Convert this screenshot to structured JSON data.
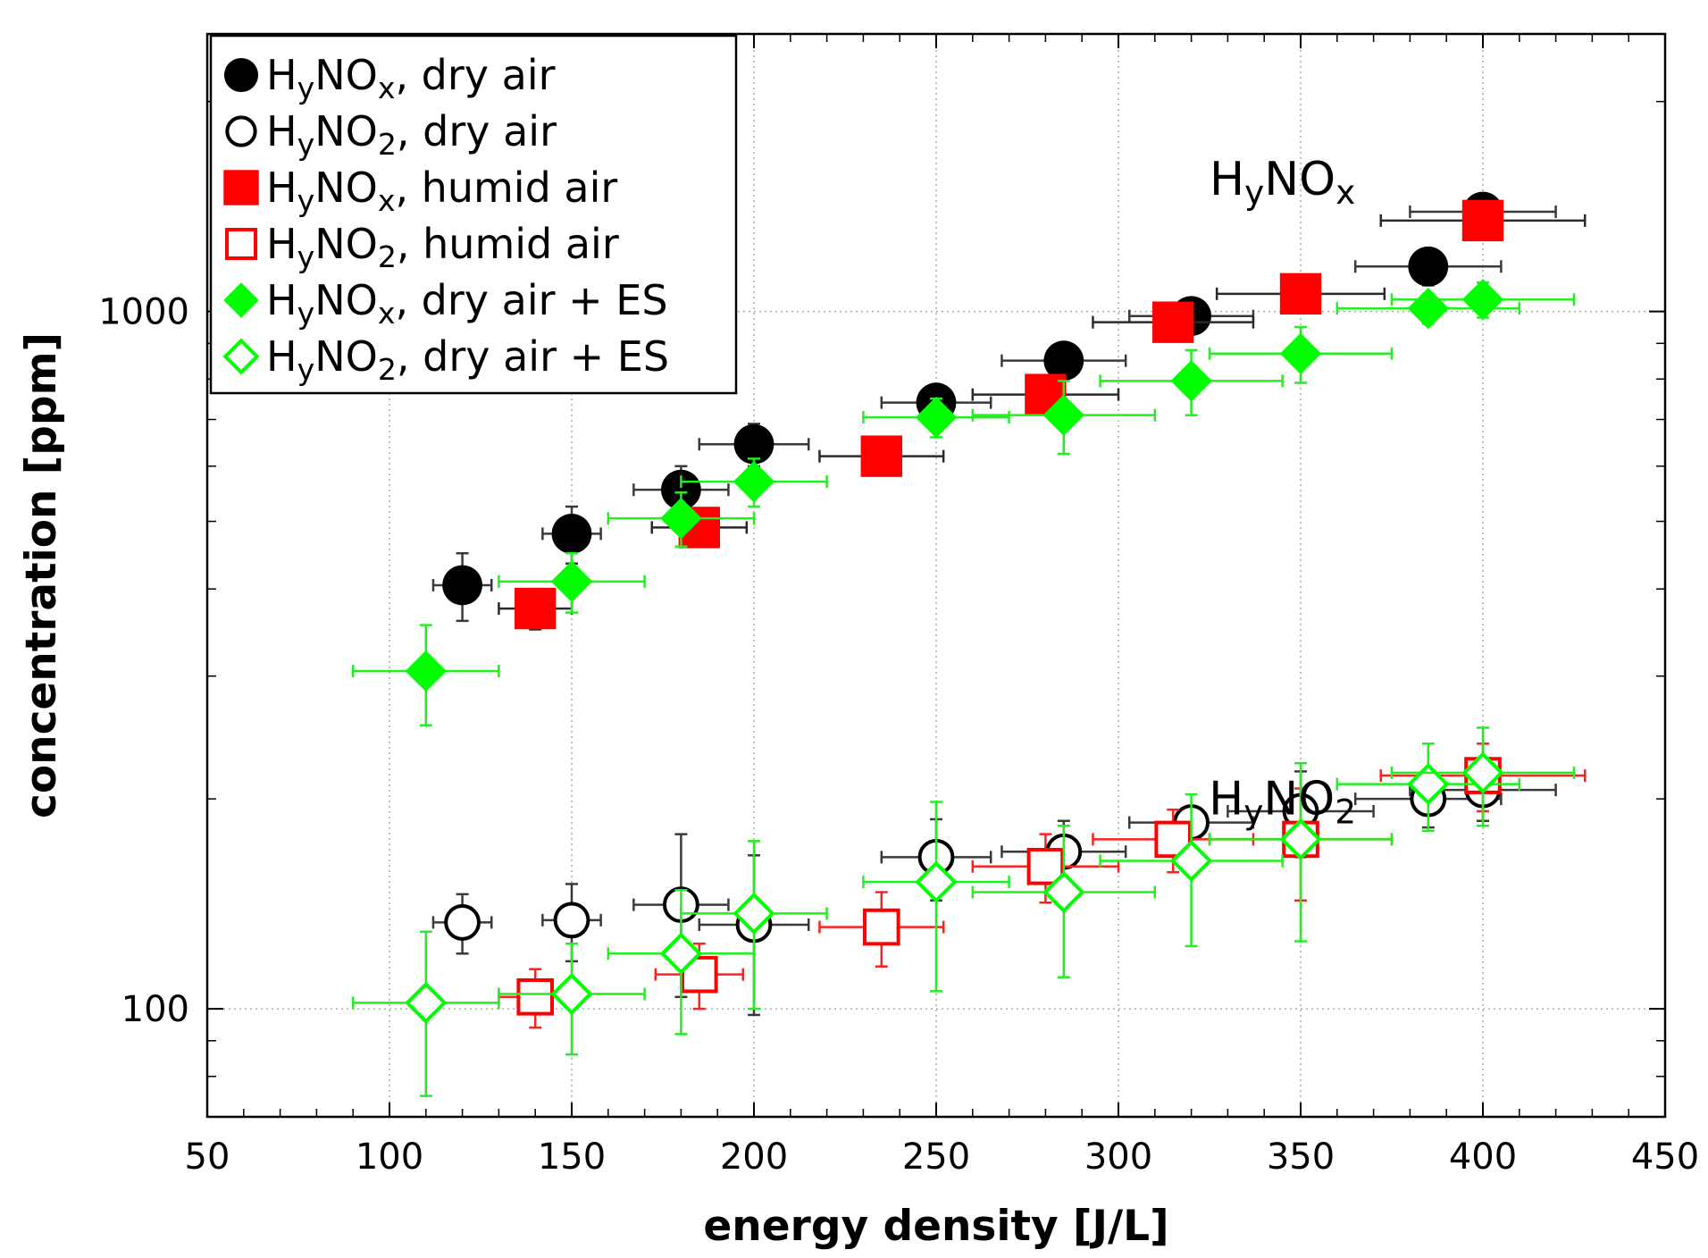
{
  "chart_data": {
    "type": "scatter",
    "xlabel": "energy density [J/L]",
    "ylabel": "concentration [ppm]",
    "xlim": [
      50,
      450
    ],
    "ylim": [
      70,
      2500
    ],
    "yscale": "log",
    "xticks": [
      50,
      100,
      150,
      200,
      250,
      300,
      350,
      400,
      450
    ],
    "xtick_labels": [
      "50",
      "100",
      "150",
      "200",
      "250",
      "300",
      "350",
      "400",
      "450"
    ],
    "yticks": [
      100,
      1000
    ],
    "ytick_labels": [
      "100",
      "1000"
    ],
    "grid": true,
    "legend_position": "top-left",
    "annotations": [
      {
        "base": "H",
        "sub": "y",
        "rest": "NO",
        "sub2": "x",
        "at_x": 345,
        "at_y": 1470
      },
      {
        "base": "H",
        "sub": "y",
        "rest": "NO",
        "sub2": "2",
        "at_x": 345,
        "at_y": 190
      }
    ],
    "series": [
      {
        "name": "H_yNO_x, dry air",
        "legend": {
          "base": "H",
          "sub": "y",
          "rest": "NO",
          "sub2": "x",
          "tail": ", dry air"
        },
        "marker": "circle",
        "filled": true,
        "color": "#000000",
        "err_color": "#3a3a3a",
        "points": [
          {
            "x": 120,
            "y": 405,
            "xerr": 8,
            "yerr": [
              360,
              450
            ]
          },
          {
            "x": 150,
            "y": 480,
            "xerr": 8,
            "yerr": [
              435,
              525
            ]
          },
          {
            "x": 180,
            "y": 555,
            "xerr": 13,
            "yerr": [
              510,
              600
            ]
          },
          {
            "x": 200,
            "y": 645,
            "xerr": 15,
            "yerr": [
              600,
              690
            ]
          },
          {
            "x": 250,
            "y": 740,
            "xerr": 15,
            "yerr": [
              695,
              785
            ]
          },
          {
            "x": 285,
            "y": 850,
            "xerr": 17,
            "yerr": [
              805,
              895
            ]
          },
          {
            "x": 320,
            "y": 985,
            "xerr": 17,
            "yerr": [
              945,
              1025
            ]
          },
          {
            "x": 385,
            "y": 1160,
            "xerr": 20,
            "yerr": [
              1090,
              1230
            ]
          },
          {
            "x": 400,
            "y": 1390,
            "xerr": 20,
            "yerr": [
              1300,
              1470
            ]
          }
        ]
      },
      {
        "name": "H_yNO_2, dry air",
        "legend": {
          "base": "H",
          "sub": "y",
          "rest": "NO",
          "sub2": "2",
          "tail": ", dry air"
        },
        "marker": "circle",
        "filled": false,
        "color": "#000000",
        "err_color": "#3a3a3a",
        "points": [
          {
            "x": 120,
            "y": 133,
            "xerr": 8,
            "yerr": [
              120,
              146
            ]
          },
          {
            "x": 150,
            "y": 134,
            "xerr": 8,
            "yerr": [
              117,
              151
            ]
          },
          {
            "x": 180,
            "y": 141,
            "xerr": 13,
            "yerr": [
              104,
              178
            ]
          },
          {
            "x": 200,
            "y": 132,
            "xerr": 15,
            "yerr": [
              98,
              166
            ]
          },
          {
            "x": 250,
            "y": 165,
            "xerr": 15,
            "yerr": [
              143,
              187
            ]
          },
          {
            "x": 285,
            "y": 168,
            "xerr": 17,
            "yerr": [
              150,
              186
            ]
          },
          {
            "x": 320,
            "y": 185,
            "xerr": 17,
            "yerr": [
              176,
              194
            ]
          },
          {
            "x": 350,
            "y": 192,
            "xerr": 20,
            "yerr": [
              165,
              219
            ]
          },
          {
            "x": 385,
            "y": 200,
            "xerr": 20,
            "yerr": [
              182,
              218
            ]
          },
          {
            "x": 400,
            "y": 206,
            "xerr": 20,
            "yerr": [
              186,
              226
            ]
          }
        ]
      },
      {
        "name": "H_yNO_x, humid air",
        "legend": {
          "base": "H",
          "sub": "y",
          "rest": "NO",
          "sub2": "x",
          "tail": ", humid air"
        },
        "marker": "square",
        "filled": true,
        "color": "#ff0000",
        "err_color": "#2a2a2a",
        "points": [
          {
            "x": 140,
            "y": 375,
            "xerr": 10,
            "yerr": [
              350,
              400
            ]
          },
          {
            "x": 185,
            "y": 490,
            "xerr": 13,
            "yerr": [
              465,
              515
            ]
          },
          {
            "x": 235,
            "y": 620,
            "xerr": 17,
            "yerr": [
              590,
              650
            ]
          },
          {
            "x": 280,
            "y": 760,
            "xerr": 20,
            "yerr": [
              725,
              795
            ]
          },
          {
            "x": 315,
            "y": 965,
            "xerr": 22,
            "yerr": [
              920,
              1010
            ]
          },
          {
            "x": 350,
            "y": 1060,
            "xerr": 23,
            "yerr": [
              1010,
              1110
            ]
          },
          {
            "x": 400,
            "y": 1350,
            "xerr": 28,
            "yerr": [
              1280,
              1420
            ]
          }
        ]
      },
      {
        "name": "H_yNO_2, humid air",
        "legend": {
          "base": "H",
          "sub": "y",
          "rest": "NO",
          "sub2": "2",
          "tail": ", humid air"
        },
        "marker": "square",
        "filled": false,
        "color": "#ff0000",
        "err_color": "#ff2020",
        "points": [
          {
            "x": 140,
            "y": 104,
            "xerr": 10,
            "yerr": [
              94,
              114
            ]
          },
          {
            "x": 185,
            "y": 112,
            "xerr": 12,
            "yerr": [
              100,
              124
            ]
          },
          {
            "x": 235,
            "y": 131,
            "xerr": 17,
            "yerr": [
              115,
              147
            ]
          },
          {
            "x": 280,
            "y": 160,
            "xerr": 20,
            "yerr": [
              142,
              178
            ]
          },
          {
            "x": 315,
            "y": 175,
            "xerr": 22,
            "yerr": [
              157,
              193
            ]
          },
          {
            "x": 350,
            "y": 175,
            "xerr": 25,
            "yerr": [
              143,
              207
            ]
          },
          {
            "x": 400,
            "y": 216,
            "xerr": 28,
            "yerr": [
              192,
              240
            ]
          }
        ]
      },
      {
        "name": "H_yNO_x, dry air + ES",
        "legend": {
          "base": "H",
          "sub": "y",
          "rest": "NO",
          "sub2": "x",
          "tail": ", dry air + ES"
        },
        "marker": "diamond",
        "filled": true,
        "color": "#00ff00",
        "err_color": "#22ee22",
        "points": [
          {
            "x": 110,
            "y": 305,
            "xerr": 20,
            "yerr": [
              255,
              355
            ]
          },
          {
            "x": 150,
            "y": 410,
            "xerr": 20,
            "yerr": [
              370,
              450
            ]
          },
          {
            "x": 180,
            "y": 505,
            "xerr": 20,
            "yerr": [
              460,
              550
            ]
          },
          {
            "x": 200,
            "y": 570,
            "xerr": 20,
            "yerr": [
              525,
              615
            ]
          },
          {
            "x": 250,
            "y": 705,
            "xerr": 20,
            "yerr": [
              660,
              750
            ]
          },
          {
            "x": 285,
            "y": 710,
            "xerr": 25,
            "yerr": [
              625,
              795
            ]
          },
          {
            "x": 320,
            "y": 795,
            "xerr": 25,
            "yerr": [
              710,
              880
            ]
          },
          {
            "x": 350,
            "y": 870,
            "xerr": 25,
            "yerr": [
              790,
              950
            ]
          },
          {
            "x": 385,
            "y": 1010,
            "xerr": 25,
            "yerr": [
              960,
              1060
            ]
          },
          {
            "x": 400,
            "y": 1040,
            "xerr": 25,
            "yerr": [
              980,
              1100
            ]
          }
        ]
      },
      {
        "name": "H_yNO_2, dry air + ES",
        "legend": {
          "base": "H",
          "sub": "y",
          "rest": "NO",
          "sub2": "2",
          "tail": ", dry air + ES"
        },
        "marker": "diamond",
        "filled": false,
        "color": "#00ff00",
        "err_color": "#22ee22",
        "points": [
          {
            "x": 110,
            "y": 102,
            "xerr": 20,
            "yerr": [
              75,
              129
            ]
          },
          {
            "x": 150,
            "y": 105,
            "xerr": 20,
            "yerr": [
              86,
              124
            ]
          },
          {
            "x": 180,
            "y": 120,
            "xerr": 20,
            "yerr": [
              92,
              148
            ]
          },
          {
            "x": 200,
            "y": 137,
            "xerr": 20,
            "yerr": [
              100,
              174
            ]
          },
          {
            "x": 250,
            "y": 152,
            "xerr": 20,
            "yerr": [
              106,
              198
            ]
          },
          {
            "x": 285,
            "y": 147,
            "xerr": 25,
            "yerr": [
              111,
              183
            ]
          },
          {
            "x": 320,
            "y": 163,
            "xerr": 25,
            "yerr": [
              123,
              203
            ]
          },
          {
            "x": 350,
            "y": 175,
            "xerr": 25,
            "yerr": [
              125,
              225
            ]
          },
          {
            "x": 385,
            "y": 210,
            "xerr": 25,
            "yerr": [
              180,
              240
            ]
          },
          {
            "x": 400,
            "y": 218,
            "xerr": 25,
            "yerr": [
              183,
              253
            ]
          }
        ]
      }
    ]
  }
}
